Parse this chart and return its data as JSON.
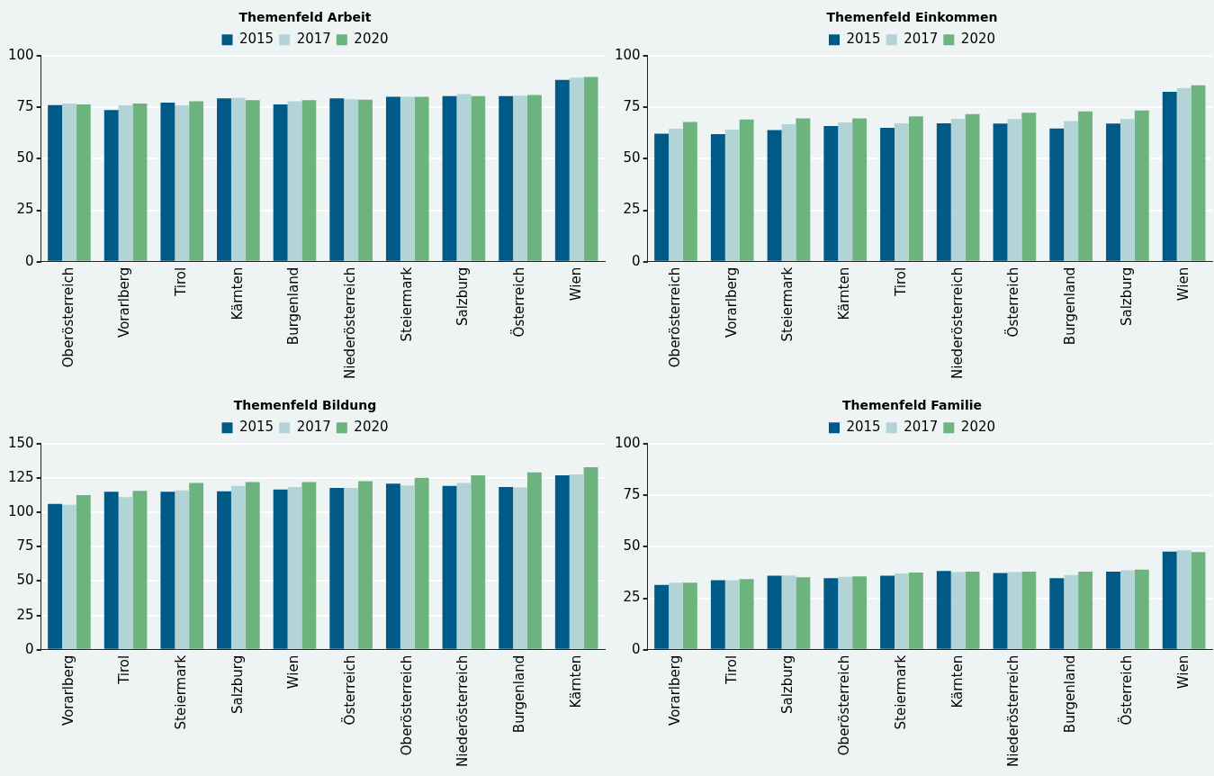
{
  "chart_data": [
    {
      "type": "bar",
      "title": "Themenfeld Arbeit",
      "categories": [
        "Oberösterreich",
        "Vorarlberg",
        "Tirol",
        "Kärnten",
        "Burgenland",
        "Niederösterreich",
        "Steiermark",
        "Salzburg",
        "Österreich",
        "Wien"
      ],
      "series": [
        {
          "name": "2015",
          "color": "#005a87",
          "values": [
            76,
            73.6,
            77.2,
            79.3,
            76.3,
            79.3,
            80,
            80.4,
            80.4,
            88.2
          ]
        },
        {
          "name": "2017",
          "color": "#b3d4d6",
          "values": [
            76.8,
            75.9,
            75.9,
            79.5,
            77.9,
            78.8,
            80,
            81.3,
            80.6,
            89.3
          ]
        },
        {
          "name": "2020",
          "color": "#6db37d",
          "values": [
            76.3,
            76.8,
            77.9,
            78.4,
            78.4,
            78.6,
            80,
            80.4,
            80.9,
            89.7
          ]
        }
      ],
      "ylim": [
        0,
        100
      ],
      "yticks": [
        0,
        25,
        50,
        75,
        100
      ],
      "grid": "y",
      "legend": "top"
    },
    {
      "type": "bar",
      "title": "Themenfeld Einkommen",
      "categories": [
        "Oberösterreich",
        "Vorarlberg",
        "Steiermark",
        "Kärnten",
        "Tirol",
        "Niederösterreich",
        "Österreich",
        "Burgenland",
        "Salzburg",
        "Wien"
      ],
      "series": [
        {
          "name": "2015",
          "color": "#005a87",
          "values": [
            62.1,
            61.9,
            63.9,
            65.9,
            65,
            67.2,
            67,
            64.7,
            67,
            82.5
          ]
        },
        {
          "name": "2017",
          "color": "#b3d4d6",
          "values": [
            64.5,
            64.1,
            66.7,
            67.6,
            67.2,
            69.4,
            69.2,
            68.3,
            69.2,
            84.3
          ]
        },
        {
          "name": "2020",
          "color": "#6db37d",
          "values": [
            67.8,
            69,
            69.6,
            69.6,
            70.5,
            71.6,
            72.3,
            72.9,
            73.4,
            85.6
          ]
        }
      ],
      "ylim": [
        0,
        100
      ],
      "yticks": [
        0,
        25,
        50,
        75,
        100
      ],
      "grid": "y",
      "legend": "top"
    },
    {
      "type": "bar",
      "title": "Themenfeld Bildung",
      "categories": [
        "Vorarlberg",
        "Tirol",
        "Steiermark",
        "Salzburg",
        "Wien",
        "Österreich",
        "Oberösterreich",
        "Niederösterreich",
        "Burgenland",
        "Kärnten"
      ],
      "series": [
        {
          "name": "2015",
          "color": "#005a87",
          "values": [
            106.2,
            115,
            115,
            115.3,
            116.7,
            117.8,
            120.9,
            119.2,
            118.5,
            126.9
          ]
        },
        {
          "name": "2017",
          "color": "#b3d4d6",
          "values": [
            105.5,
            111.1,
            116,
            119.2,
            118.5,
            117.8,
            119.5,
            121.3,
            118.1,
            127.6
          ]
        },
        {
          "name": "2020",
          "color": "#6db37d",
          "values": [
            112.5,
            115.7,
            121.3,
            122,
            122,
            122.7,
            125.1,
            126.9,
            129,
            132.8
          ]
        }
      ],
      "ylim": [
        0,
        150
      ],
      "yticks": [
        0,
        25,
        50,
        75,
        100,
        125,
        150
      ],
      "grid": "y",
      "legend": "top"
    },
    {
      "type": "bar",
      "title": "Themenfeld Familie",
      "categories": [
        "Vorarlberg",
        "Tirol",
        "Salzburg",
        "Oberösterreich",
        "Steiermark",
        "Kärnten",
        "Niederösterreich",
        "Burgenland",
        "Österreich",
        "Wien"
      ],
      "series": [
        {
          "name": "2015",
          "color": "#005a87",
          "values": [
            31.5,
            33.8,
            35.9,
            34.7,
            35.9,
            38.2,
            37.2,
            34.7,
            37.9,
            47.6
          ]
        },
        {
          "name": "2017",
          "color": "#b3d4d6",
          "values": [
            32.6,
            33.8,
            36.1,
            35.4,
            37,
            37.7,
            37.7,
            36.3,
            38.6,
            48.3
          ]
        },
        {
          "name": "2020",
          "color": "#6db37d",
          "values": [
            32.6,
            34.3,
            35.2,
            35.6,
            37.5,
            37.9,
            37.9,
            37.9,
            38.9,
            47.4
          ]
        }
      ],
      "ylim": [
        0,
        100
      ],
      "yticks": [
        0,
        25,
        50,
        75,
        100
      ],
      "grid": "y",
      "legend": "top"
    }
  ]
}
